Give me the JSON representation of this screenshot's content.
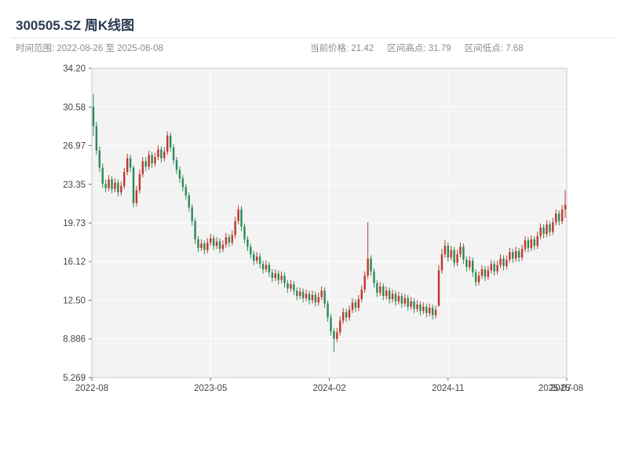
{
  "header": {
    "title": "300505.SZ 周K线图",
    "range_label": "时间范围: 2022-08-26 至 2025-08-08",
    "stats": {
      "price": "当前价格: 21.42",
      "high": "区间高点: 31.79",
      "low": "区间低点: 7.68"
    }
  },
  "chart_data": {
    "type": "candlestick",
    "symbol": "300505.SZ",
    "interval": "weekly",
    "title": "300505.SZ 周K线图",
    "date_range": {
      "start": "2022-08-26",
      "end": "2025-08-08"
    },
    "current_price": 21.42,
    "range_high": 31.79,
    "range_low": 7.68,
    "ylim": [
      5.269,
      34.2
    ],
    "y_ticks": [
      5.269,
      8.886,
      12.5,
      16.12,
      19.73,
      23.35,
      26.97,
      30.58,
      34.2
    ],
    "y_tick_labels": [
      "5.269",
      "8.886",
      "12.50",
      "16.12",
      "19.73",
      "23.35",
      "26.97",
      "30.58",
      "34.20"
    ],
    "x_tick_labels": [
      "2022-08",
      "2023-05",
      "2024-02",
      "2024-11",
      "2025-08"
    ],
    "x_overlap_label": "2025-07",
    "grid": true,
    "legend": "none",
    "colors": {
      "up": "#c0392b",
      "down": "#2e8b57",
      "plot_bg": "#f3f3f4",
      "grid": "#ffffff",
      "border": "#c9c9c9",
      "tick_text": "#454545"
    },
    "candles_ohlc": [
      [
        30.6,
        31.79,
        27.9,
        28.8
      ],
      [
        28.8,
        29.2,
        26.1,
        26.5
      ],
      [
        26.5,
        26.9,
        24.5,
        24.9
      ],
      [
        24.9,
        25.3,
        23.0,
        23.4
      ],
      [
        23.4,
        23.8,
        22.6,
        23.0
      ],
      [
        23.0,
        24.2,
        22.7,
        23.8
      ],
      [
        23.8,
        24.1,
        22.5,
        22.9
      ],
      [
        22.9,
        23.9,
        22.6,
        23.5
      ],
      [
        23.5,
        23.8,
        22.2,
        22.6
      ],
      [
        22.6,
        23.6,
        22.3,
        23.2
      ],
      [
        23.2,
        24.9,
        22.9,
        24.5
      ],
      [
        24.5,
        26.2,
        24.2,
        25.8
      ],
      [
        25.8,
        26.1,
        24.5,
        24.9
      ],
      [
        24.9,
        25.1,
        21.2,
        21.6
      ],
      [
        21.6,
        23.2,
        21.3,
        22.8
      ],
      [
        22.8,
        24.7,
        22.5,
        24.3
      ],
      [
        24.3,
        25.9,
        24.0,
        25.5
      ],
      [
        25.5,
        25.9,
        24.6,
        25.0
      ],
      [
        25.0,
        26.5,
        24.7,
        26.1
      ],
      [
        26.1,
        26.4,
        24.9,
        25.3
      ],
      [
        25.3,
        26.3,
        25.0,
        25.9
      ],
      [
        25.9,
        27.0,
        25.6,
        26.6
      ],
      [
        26.6,
        26.9,
        25.4,
        25.8
      ],
      [
        25.8,
        26.8,
        25.5,
        26.4
      ],
      [
        26.4,
        28.3,
        26.1,
        27.9
      ],
      [
        27.9,
        28.2,
        26.4,
        26.8
      ],
      [
        26.8,
        27.1,
        25.2,
        25.6
      ],
      [
        25.6,
        25.9,
        24.3,
        24.7
      ],
      [
        24.7,
        25.0,
        23.5,
        23.9
      ],
      [
        23.9,
        24.2,
        22.7,
        23.1
      ],
      [
        23.1,
        23.4,
        21.9,
        22.3
      ],
      [
        22.3,
        22.6,
        20.8,
        21.2
      ],
      [
        21.2,
        21.5,
        19.5,
        19.9
      ],
      [
        19.9,
        20.2,
        17.8,
        18.2
      ],
      [
        18.2,
        18.5,
        17.0,
        17.4
      ],
      [
        17.4,
        18.2,
        17.1,
        17.8
      ],
      [
        17.8,
        18.1,
        16.8,
        17.2
      ],
      [
        17.2,
        18.3,
        16.9,
        17.9
      ],
      [
        17.9,
        18.7,
        17.6,
        18.3
      ],
      [
        18.3,
        18.6,
        17.2,
        17.6
      ],
      [
        17.6,
        18.4,
        17.3,
        18.0
      ],
      [
        18.0,
        18.3,
        16.9,
        17.3
      ],
      [
        17.3,
        18.1,
        17.0,
        17.7
      ],
      [
        17.7,
        18.8,
        17.4,
        18.4
      ],
      [
        18.4,
        18.7,
        17.5,
        17.9
      ],
      [
        17.9,
        19.0,
        17.6,
        18.6
      ],
      [
        18.6,
        20.3,
        18.3,
        19.9
      ],
      [
        19.9,
        21.4,
        19.6,
        21.0
      ],
      [
        21.0,
        21.3,
        19.0,
        19.4
      ],
      [
        19.4,
        19.7,
        17.8,
        18.2
      ],
      [
        18.2,
        18.5,
        17.1,
        17.5
      ],
      [
        17.5,
        17.8,
        16.4,
        16.8
      ],
      [
        16.8,
        17.1,
        15.8,
        16.2
      ],
      [
        16.2,
        17.0,
        15.9,
        16.6
      ],
      [
        16.6,
        16.9,
        15.5,
        15.9
      ],
      [
        15.9,
        16.2,
        15.0,
        15.4
      ],
      [
        15.4,
        16.2,
        15.1,
        15.8
      ],
      [
        15.8,
        16.1,
        14.7,
        15.1
      ],
      [
        15.1,
        15.4,
        14.2,
        14.6
      ],
      [
        14.6,
        15.4,
        14.3,
        15.0
      ],
      [
        15.0,
        15.3,
        14.0,
        14.4
      ],
      [
        14.4,
        15.2,
        14.1,
        14.8
      ],
      [
        14.8,
        15.1,
        13.7,
        14.1
      ],
      [
        14.1,
        14.4,
        13.2,
        13.6
      ],
      [
        13.6,
        14.4,
        13.3,
        14.0
      ],
      [
        14.0,
        14.3,
        13.0,
        13.4
      ],
      [
        13.4,
        13.7,
        12.5,
        12.9
      ],
      [
        12.9,
        13.7,
        12.6,
        13.3
      ],
      [
        13.3,
        13.6,
        12.3,
        12.7
      ],
      [
        12.7,
        13.5,
        12.4,
        13.1
      ],
      [
        13.1,
        13.4,
        12.1,
        12.5
      ],
      [
        12.5,
        13.4,
        12.2,
        13.0
      ],
      [
        13.0,
        13.3,
        11.9,
        12.3
      ],
      [
        12.3,
        13.2,
        12.0,
        12.8
      ],
      [
        12.8,
        13.8,
        12.5,
        13.4
      ],
      [
        13.4,
        13.7,
        11.8,
        12.2
      ],
      [
        12.2,
        12.5,
        10.5,
        10.9
      ],
      [
        10.9,
        11.2,
        9.2,
        9.6
      ],
      [
        9.6,
        9.9,
        7.68,
        8.9
      ],
      [
        8.9,
        9.9,
        8.6,
        9.5
      ],
      [
        9.5,
        11.0,
        9.2,
        10.6
      ],
      [
        10.6,
        11.8,
        10.3,
        11.4
      ],
      [
        11.4,
        11.7,
        10.5,
        10.9
      ],
      [
        10.9,
        12.0,
        10.6,
        11.6
      ],
      [
        11.6,
        12.7,
        11.3,
        12.3
      ],
      [
        12.3,
        12.6,
        11.4,
        11.8
      ],
      [
        11.8,
        13.0,
        11.5,
        12.6
      ],
      [
        12.6,
        13.9,
        12.3,
        13.5
      ],
      [
        13.5,
        15.2,
        13.2,
        14.8
      ],
      [
        14.8,
        19.8,
        14.5,
        16.4
      ],
      [
        16.4,
        16.7,
        14.8,
        15.2
      ],
      [
        15.2,
        15.5,
        13.7,
        14.1
      ],
      [
        14.1,
        14.4,
        12.8,
        13.2
      ],
      [
        13.2,
        14.2,
        12.9,
        13.8
      ],
      [
        13.8,
        14.1,
        12.5,
        12.9
      ],
      [
        12.9,
        13.8,
        12.6,
        13.4
      ],
      [
        13.4,
        13.7,
        12.2,
        12.6
      ],
      [
        12.6,
        13.5,
        12.3,
        13.1
      ],
      [
        13.1,
        13.4,
        12.0,
        12.4
      ],
      [
        12.4,
        13.3,
        12.1,
        12.9
      ],
      [
        12.9,
        13.2,
        11.8,
        12.2
      ],
      [
        12.2,
        13.1,
        11.9,
        12.7
      ],
      [
        12.7,
        13.0,
        11.5,
        11.9
      ],
      [
        11.9,
        12.8,
        11.6,
        12.4
      ],
      [
        12.4,
        12.7,
        11.3,
        11.7
      ],
      [
        11.7,
        12.5,
        11.4,
        12.1
      ],
      [
        12.1,
        12.4,
        11.1,
        11.5
      ],
      [
        11.5,
        12.3,
        11.2,
        11.9
      ],
      [
        11.9,
        12.2,
        10.9,
        11.3
      ],
      [
        11.3,
        12.2,
        11.0,
        11.8
      ],
      [
        11.8,
        12.1,
        10.7,
        11.1
      ],
      [
        11.1,
        12.0,
        10.8,
        11.6
      ],
      [
        12.0,
        15.8,
        11.9,
        15.3
      ],
      [
        15.3,
        17.3,
        15.0,
        16.8
      ],
      [
        16.8,
        18.1,
        16.5,
        17.6
      ],
      [
        17.6,
        17.9,
        16.1,
        16.5
      ],
      [
        16.5,
        17.6,
        16.2,
        17.2
      ],
      [
        17.2,
        17.5,
        15.6,
        16.0
      ],
      [
        16.0,
        17.2,
        15.7,
        16.8
      ],
      [
        16.8,
        17.9,
        16.5,
        17.5
      ],
      [
        17.5,
        17.8,
        15.9,
        16.3
      ],
      [
        16.3,
        16.6,
        15.2,
        15.6
      ],
      [
        15.6,
        16.6,
        15.3,
        16.2
      ],
      [
        16.2,
        16.5,
        14.7,
        15.1
      ],
      [
        15.1,
        15.4,
        13.8,
        14.2
      ],
      [
        14.2,
        15.2,
        13.9,
        14.8
      ],
      [
        14.8,
        15.8,
        14.5,
        15.4
      ],
      [
        15.4,
        15.7,
        14.3,
        14.7
      ],
      [
        14.7,
        15.7,
        14.4,
        15.3
      ],
      [
        15.3,
        16.3,
        15.0,
        15.9
      ],
      [
        15.9,
        16.2,
        14.8,
        15.2
      ],
      [
        15.2,
        16.2,
        14.9,
        15.8
      ],
      [
        15.8,
        16.8,
        15.5,
        16.4
      ],
      [
        16.4,
        16.7,
        15.3,
        15.7
      ],
      [
        15.7,
        16.7,
        15.4,
        16.3
      ],
      [
        16.3,
        17.4,
        16.0,
        17.0
      ],
      [
        17.0,
        17.3,
        16.0,
        16.4
      ],
      [
        16.4,
        17.5,
        16.1,
        17.1
      ],
      [
        17.1,
        17.4,
        16.1,
        16.5
      ],
      [
        16.5,
        17.7,
        16.2,
        17.3
      ],
      [
        17.3,
        18.5,
        17.0,
        18.1
      ],
      [
        18.1,
        18.4,
        17.0,
        17.4
      ],
      [
        17.4,
        18.6,
        17.1,
        18.2
      ],
      [
        18.2,
        18.5,
        17.2,
        17.6
      ],
      [
        17.6,
        18.9,
        17.3,
        18.5
      ],
      [
        18.5,
        19.7,
        18.2,
        19.3
      ],
      [
        19.3,
        19.6,
        18.3,
        18.7
      ],
      [
        18.7,
        20.0,
        18.4,
        19.6
      ],
      [
        19.6,
        19.9,
        18.5,
        18.9
      ],
      [
        18.9,
        20.2,
        18.6,
        19.8
      ],
      [
        19.8,
        21.0,
        19.5,
        20.6
      ],
      [
        20.6,
        20.9,
        19.5,
        19.9
      ],
      [
        19.9,
        21.4,
        19.6,
        21.0
      ],
      [
        21.0,
        22.8,
        20.2,
        21.42
      ]
    ]
  }
}
